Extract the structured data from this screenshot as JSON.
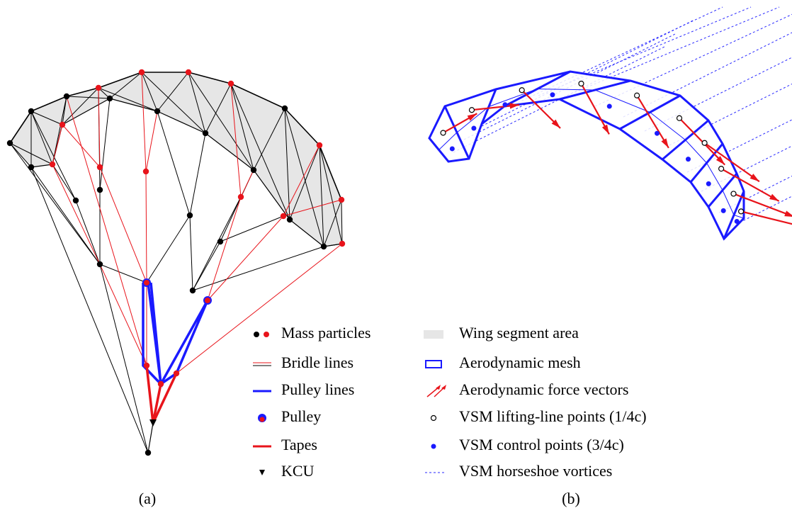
{
  "legend": {
    "items": [
      "Mass particles",
      "Bridle lines",
      "Pulley lines",
      "Pulley",
      "Tapes",
      "KCU",
      "Wing segment area",
      "Aerodynamic mesh",
      "Aerodynamic force vectors",
      "VSM lifting-line points (1/4c)",
      "VSM control points (3/4c)",
      "VSM horseshoe vortices"
    ]
  },
  "captions": [
    "(a)",
    "(b)"
  ]
}
